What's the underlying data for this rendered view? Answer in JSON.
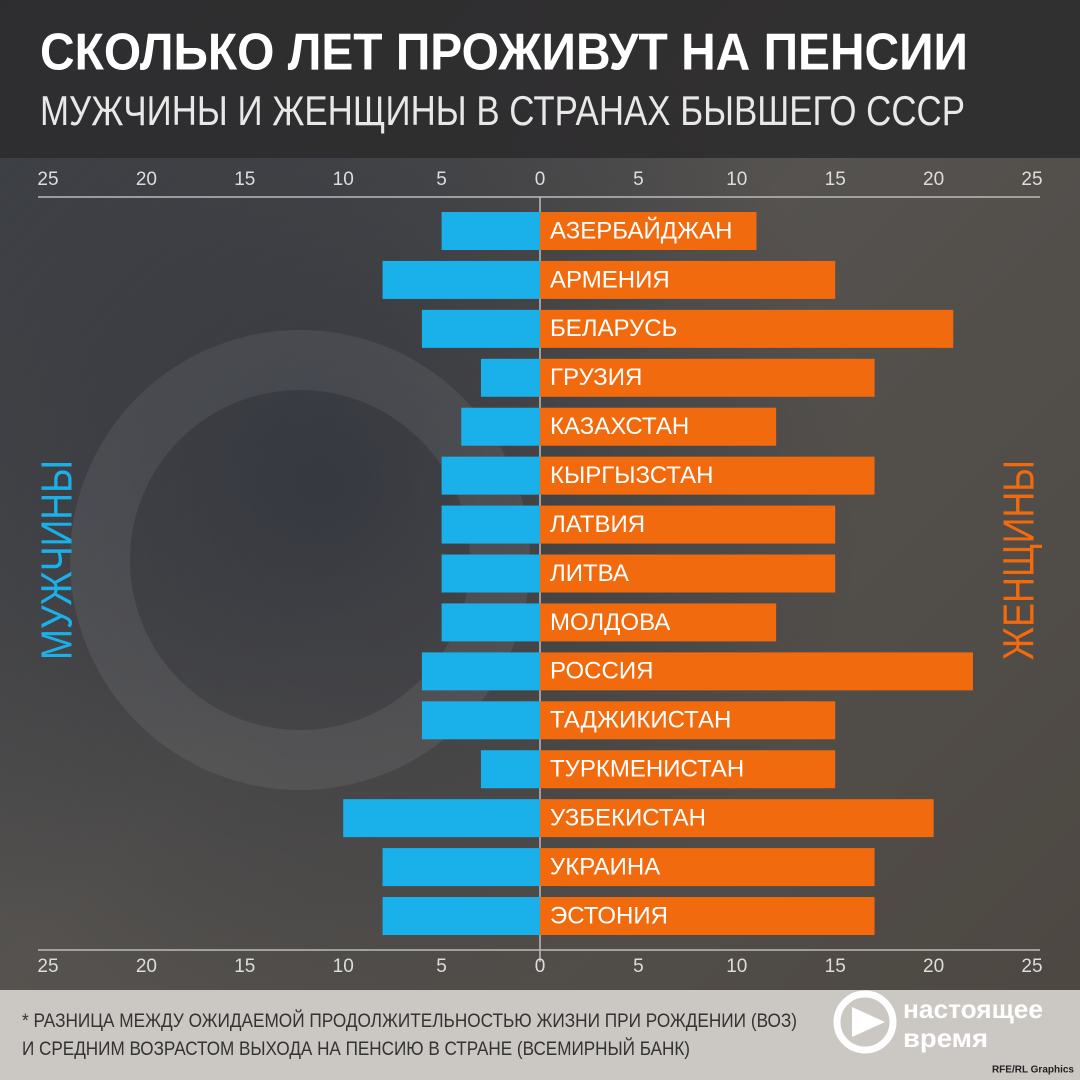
{
  "chart_data": {
    "type": "butterfly-bar",
    "title": "СКОЛЬКО ЛЕТ ПРОЖИВУТ НА ПЕНСИИ",
    "subtitle": "МУЖЧИНЫ И ЖЕНЩИНЫ В СТРАНАХ БЫВШЕГО СССР",
    "categories": [
      "АЗЕРБАЙДЖАН",
      "АРМЕНИЯ",
      "БЕЛАРУСЬ",
      "ГРУЗИЯ",
      "КАЗАХСТАН",
      "КЫРГЫЗСТАН",
      "ЛАТВИЯ",
      "ЛИТВА",
      "МОЛДОВА",
      "РОССИЯ",
      "ТАДЖИКИСТАН",
      "ТУРКМЕНИСТАН",
      "УЗБЕКИСТАН",
      "УКРАИНА",
      "ЭСТОНИЯ"
    ],
    "series": [
      {
        "name": "МУЖЧИНЫ",
        "color": "#1ab0ea",
        "side": "left",
        "values": [
          5,
          8,
          6,
          3,
          4,
          5,
          5,
          5,
          5,
          6,
          6,
          3,
          10,
          8,
          8
        ]
      },
      {
        "name": "ЖЕНЩИНЫ",
        "color": "#f26a0e",
        "side": "right",
        "values": [
          11,
          15,
          21,
          17,
          12,
          17,
          15,
          15,
          12,
          22,
          15,
          15,
          20,
          17,
          17
        ]
      }
    ],
    "xlim": [
      0,
      25
    ],
    "xticks": [
      0,
      5,
      10,
      15,
      20,
      25
    ],
    "note": [
      "* РАЗНИЦА МЕЖДУ ОЖИДАЕМОЙ ПРОДОЛЖИТЕЛЬНОСТЬЮ ЖИЗНИ ПРИ РОЖДЕНИИ (ВОЗ)",
      "И СРЕДНИМ ВОЗРАСТОМ ВЫХОДА НА ПЕНСИЮ В СТРАНЕ (ВСЕМИРНЫЙ БАНК)"
    ],
    "logo": [
      "настоящее",
      "время"
    ],
    "source": "RFE/RL Graphics"
  }
}
